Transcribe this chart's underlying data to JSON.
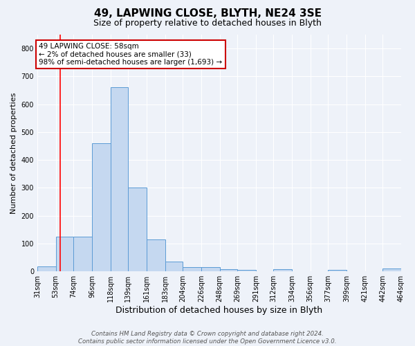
{
  "title": "49, LAPWING CLOSE, BLYTH, NE24 3SE",
  "subtitle": "Size of property relative to detached houses in Blyth",
  "xlabel": "Distribution of detached houses by size in Blyth",
  "ylabel": "Number of detached properties",
  "bin_edges": [
    31,
    53,
    74,
    96,
    118,
    139,
    161,
    183,
    204,
    226,
    248,
    269,
    291,
    312,
    334,
    356,
    377,
    399,
    421,
    442,
    464
  ],
  "bin_labels": [
    "31sqm",
    "53sqm",
    "74sqm",
    "96sqm",
    "118sqm",
    "139sqm",
    "161sqm",
    "183sqm",
    "204sqm",
    "226sqm",
    "248sqm",
    "269sqm",
    "291sqm",
    "312sqm",
    "334sqm",
    "356sqm",
    "377sqm",
    "399sqm",
    "421sqm",
    "442sqm",
    "464sqm"
  ],
  "bar_heights": [
    18,
    125,
    125,
    460,
    660,
    300,
    115,
    35,
    15,
    15,
    8,
    5,
    0,
    8,
    0,
    0,
    5,
    0,
    0,
    10
  ],
  "bar_color": "#c5d8f0",
  "bar_edge_color": "#5b9bd5",
  "red_line_x": 58,
  "ylim": [
    0,
    850
  ],
  "yticks": [
    0,
    100,
    200,
    300,
    400,
    500,
    600,
    700,
    800
  ],
  "annotation_text": "49 LAPWING CLOSE: 58sqm\n← 2% of detached houses are smaller (33)\n98% of semi-detached houses are larger (1,693) →",
  "annotation_box_color": "#ffffff",
  "annotation_box_edgecolor": "#cc0000",
  "footer_text": "Contains HM Land Registry data © Crown copyright and database right 2024.\nContains public sector information licensed under the Open Government Licence v3.0.",
  "background_color": "#eef2f9",
  "grid_color": "#ffffff",
  "title_fontsize": 11,
  "subtitle_fontsize": 9,
  "xlabel_fontsize": 9,
  "ylabel_fontsize": 8,
  "tick_fontsize": 7,
  "annot_fontsize": 7.5
}
